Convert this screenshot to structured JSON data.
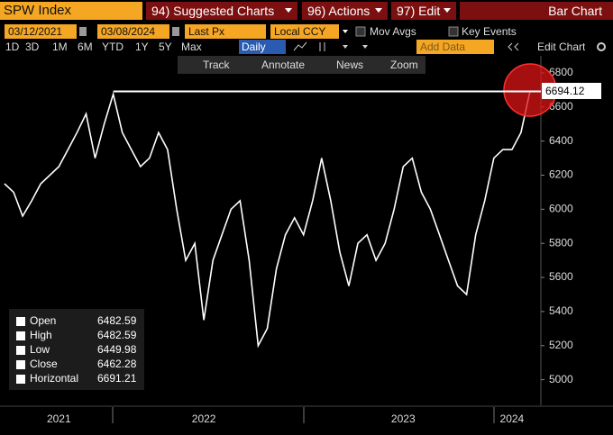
{
  "toolbar": {
    "security": "SPW Index",
    "menus": [
      "94) Suggested Charts",
      "96) Actions",
      "97) Edit"
    ],
    "chart_type": "Bar Chart"
  },
  "settings": {
    "start_date": "03/12/2021",
    "end_date": "03/08/2024",
    "field": "Last Px",
    "currency": "Local CCY",
    "toggles": [
      "Mov Avgs",
      "Key Events"
    ]
  },
  "periods": [
    "1D",
    "3D",
    "1M",
    "6M",
    "YTD",
    "1Y",
    "5Y",
    "Max"
  ],
  "frequency": "Daily",
  "add_data": "Add Data",
  "edit_chart": "Edit Chart",
  "tools": [
    "Track",
    "Annotate",
    "News",
    "Zoom"
  ],
  "chart_data": {
    "type": "line",
    "color": "#ffffff",
    "categories": [
      null,
      null,
      null,
      null,
      null,
      null,
      "2021",
      null,
      null,
      null,
      null,
      null,
      null,
      null,
      null,
      null,
      null,
      null,
      null,
      null,
      null,
      null,
      "2022",
      null,
      null,
      null,
      null,
      null,
      null,
      null,
      null,
      null,
      null,
      null,
      null,
      null,
      null,
      null,
      null,
      null,
      null,
      null,
      null,
      null,
      "2023",
      null,
      null,
      null,
      null,
      null,
      null,
      null,
      null,
      null,
      null,
      null,
      "2024",
      null,
      null
    ],
    "values": [
      6150,
      6100,
      5960,
      6050,
      6150,
      6200,
      6250,
      6350,
      6450,
      6560,
      6300,
      6500,
      6675,
      6450,
      6350,
      6250,
      6300,
      6450,
      6350,
      6000,
      5700,
      5800,
      5350,
      5700,
      5850,
      6000,
      6050,
      5700,
      5200,
      5300,
      5650,
      5850,
      5950,
      5850,
      6050,
      6300,
      6050,
      5750,
      5550,
      5800,
      5850,
      5700,
      5800,
      6000,
      6250,
      6300,
      6100,
      6000,
      5850,
      5700,
      5550,
      5500,
      5850,
      6050,
      6300,
      6350,
      6350,
      6450,
      6694.12
    ],
    "ylim": [
      4850,
      6900
    ],
    "yticks": [
      5000,
      5200,
      5400,
      5600,
      5800,
      6000,
      6200,
      6400,
      6600,
      6800
    ],
    "legend": [
      {
        "name": "Open",
        "value": 6482.59
      },
      {
        "name": "High",
        "value": 6482.59
      },
      {
        "name": "Low",
        "value": 6449.98
      },
      {
        "name": "Close",
        "value": 6462.28
      },
      {
        "name": "Horizontal",
        "value": 6691.21
      }
    ]
  }
}
